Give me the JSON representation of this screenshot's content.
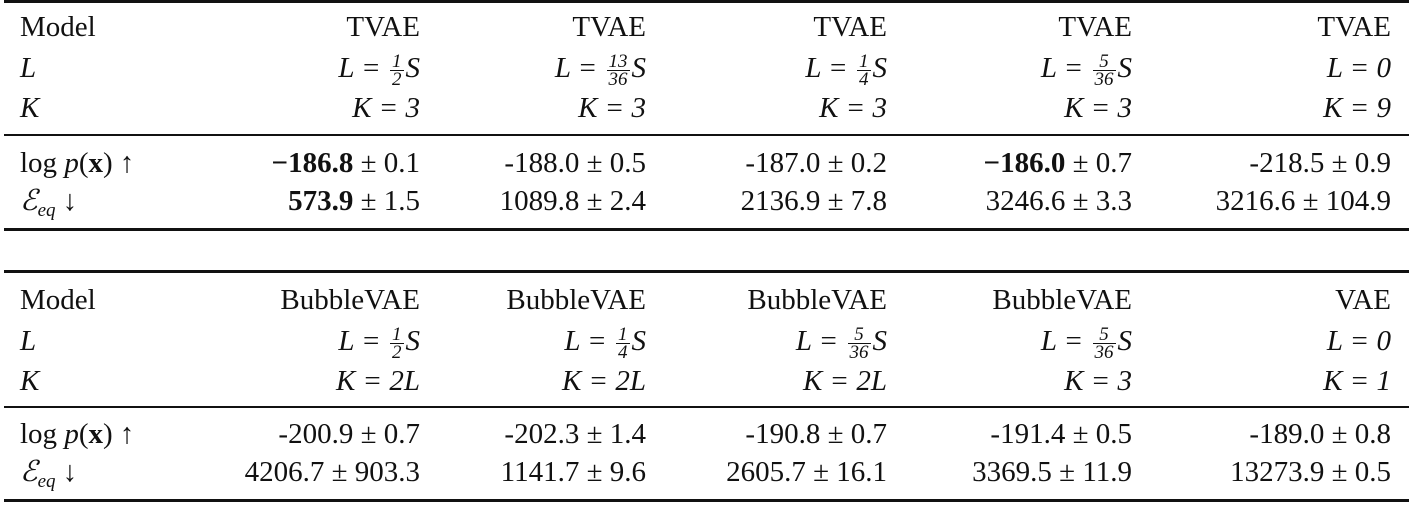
{
  "tables": [
    {
      "header": {
        "model_label": "Model",
        "L_label": "L",
        "K_label": "K",
        "models": [
          "TVAE",
          "TVAE",
          "TVAE",
          "TVAE",
          "TVAE"
        ],
        "L_values": [
          {
            "prefix": "L = ",
            "num": "1",
            "den": "2",
            "suffix": "S"
          },
          {
            "prefix": "L = ",
            "num": "13",
            "den": "36",
            "suffix": "S"
          },
          {
            "prefix": "L = ",
            "num": "1",
            "den": "4",
            "suffix": "S"
          },
          {
            "prefix": "L = ",
            "num": "5",
            "den": "36",
            "suffix": "S"
          },
          {
            "prefix": "L = 0",
            "num": "",
            "den": "",
            "suffix": ""
          }
        ],
        "K_values": [
          "K = 3",
          "K = 3",
          "K = 3",
          "K = 3",
          "K = 9"
        ]
      },
      "metrics": {
        "logp_label": "log p(x) ↑",
        "eq_label": "ℰeq ↓",
        "logp": [
          {
            "mean": "−186.8",
            "err": " ± 0.1",
            "bold": true
          },
          {
            "mean": "-188.0",
            "err": " ± 0.5",
            "bold": false
          },
          {
            "mean": "-187.0",
            "err": " ± 0.2",
            "bold": false
          },
          {
            "mean": "−186.0",
            "err": " ± 0.7",
            "bold": true
          },
          {
            "mean": "-218.5",
            "err": " ± 0.9",
            "bold": false
          }
        ],
        "eq": [
          {
            "mean": "573.9",
            "err": " ± 1.5",
            "bold": true
          },
          {
            "mean": "1089.8",
            "err": " ± 2.4",
            "bold": false
          },
          {
            "mean": "2136.9",
            "err": " ± 7.8",
            "bold": false
          },
          {
            "mean": "3246.6",
            "err": " ± 3.3",
            "bold": false
          },
          {
            "mean": "3216.6",
            "err": " ± 104.9",
            "bold": false
          }
        ]
      }
    },
    {
      "header": {
        "model_label": "Model",
        "L_label": "L",
        "K_label": "K",
        "models": [
          "BubbleVAE",
          "BubbleVAE",
          "BubbleVAE",
          "BubbleVAE",
          "VAE"
        ],
        "L_values": [
          {
            "prefix": "L = ",
            "num": "1",
            "den": "2",
            "suffix": "S"
          },
          {
            "prefix": "L = ",
            "num": "1",
            "den": "4",
            "suffix": "S"
          },
          {
            "prefix": "L = ",
            "num": "5",
            "den": "36",
            "suffix": "S"
          },
          {
            "prefix": "L = ",
            "num": "5",
            "den": "36",
            "suffix": "S"
          },
          {
            "prefix": "L = 0",
            "num": "",
            "den": "",
            "suffix": ""
          }
        ],
        "K_values": [
          "K = 2L",
          "K = 2L",
          "K = 2L",
          "K = 3",
          "K = 1"
        ]
      },
      "metrics": {
        "logp_label": "log p(x) ↑",
        "eq_label": "ℰeq ↓",
        "logp": [
          {
            "mean": "-200.9",
            "err": " ± 0.7",
            "bold": false
          },
          {
            "mean": "-202.3",
            "err": " ± 1.4",
            "bold": false
          },
          {
            "mean": "-190.8",
            "err": " ± 0.7",
            "bold": false
          },
          {
            "mean": "-191.4",
            "err": " ± 0.5",
            "bold": false
          },
          {
            "mean": "-189.0",
            "err": " ± 0.8",
            "bold": false
          }
        ],
        "eq": [
          {
            "mean": "4206.7",
            "err": " ± 903.3",
            "bold": false
          },
          {
            "mean": "1141.7",
            "err": " ± 9.6",
            "bold": false
          },
          {
            "mean": "2605.7",
            "err": " ± 16.1",
            "bold": false
          },
          {
            "mean": "3369.5",
            "err": " ± 11.9",
            "bold": false
          },
          {
            "mean": "13273.9",
            "err": " ± 0.5",
            "bold": false
          }
        ]
      }
    }
  ]
}
